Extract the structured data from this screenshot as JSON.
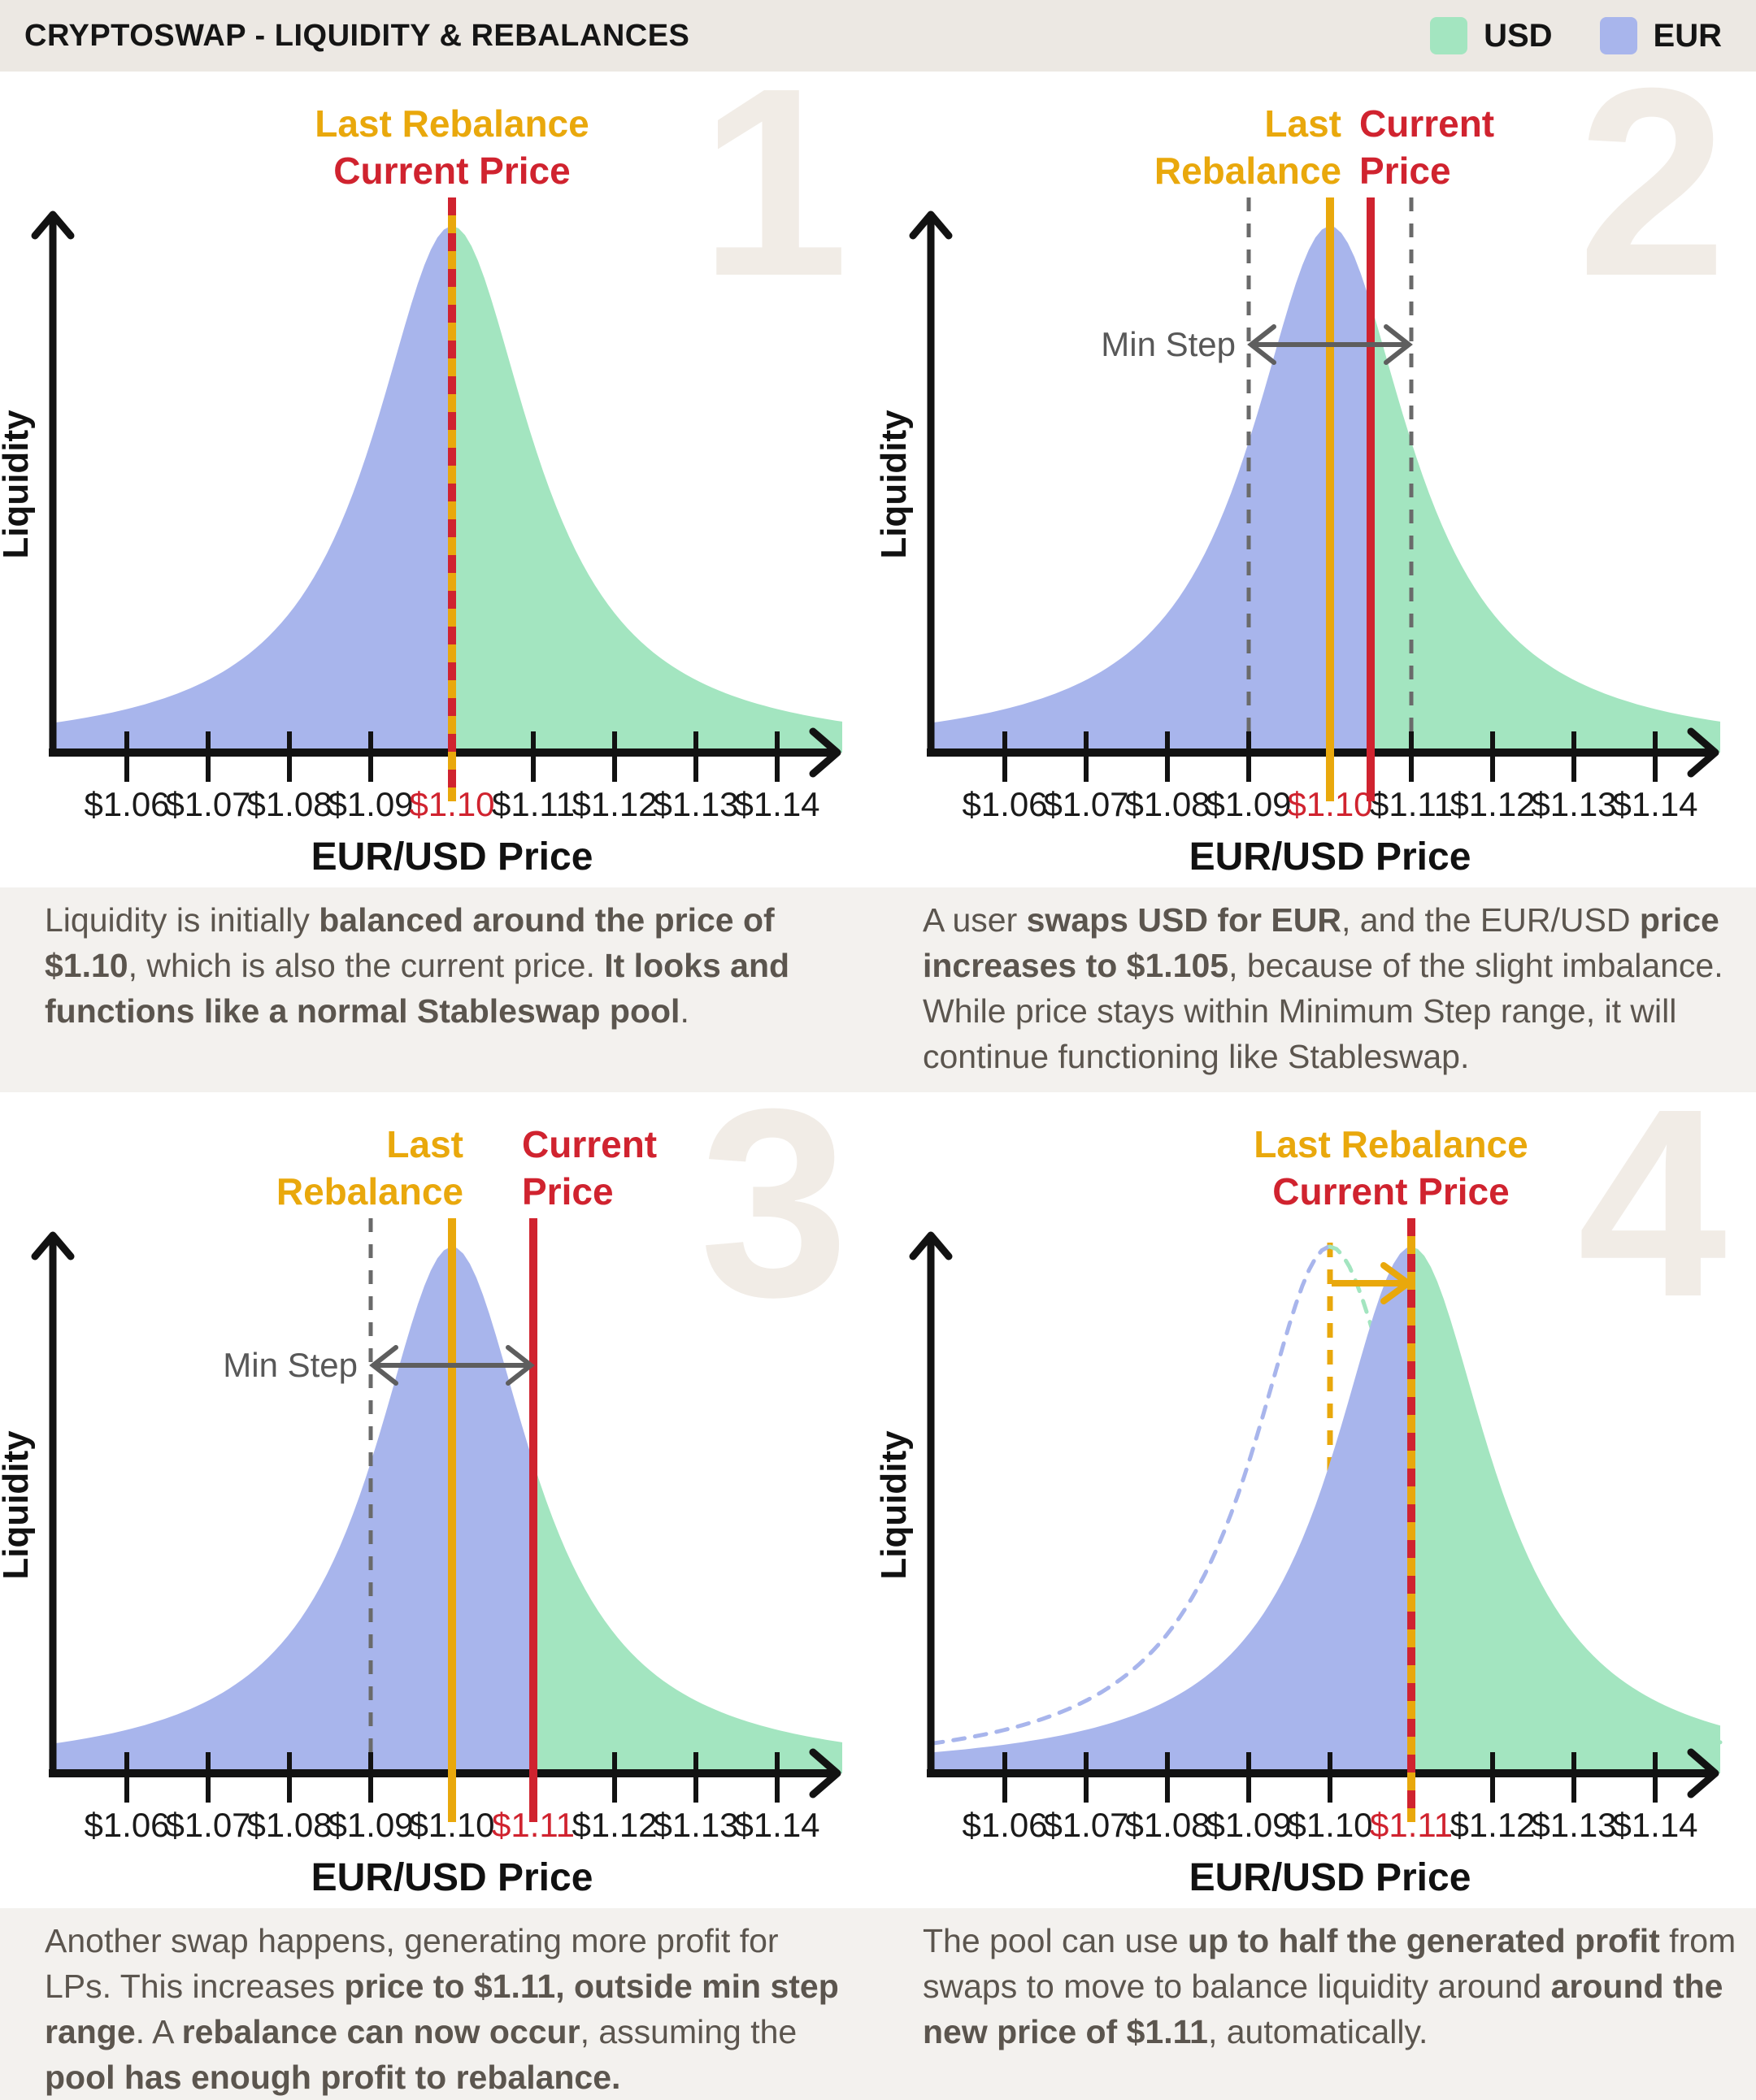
{
  "header": {
    "title": "CRYPTOSWAP - LIQUIDITY & REBALANCES",
    "legend": [
      {
        "label": "USD",
        "color": "#A3E5C0"
      },
      {
        "label": "EUR",
        "color": "#A8B5EC"
      }
    ]
  },
  "colors": {
    "usd_fill": "#A3E5C0",
    "eur_fill": "#A8B5EC",
    "gold": "#E9A80C",
    "red": "#D0232F",
    "axis": "#121212",
    "tick_text": "#1A1A1A",
    "dashed_gray": "#6A6A6A",
    "min_step_text": "#585858",
    "watermark": "#F1ECE6",
    "caption_text": "#5B554E",
    "header_bg": "#ECE8E3",
    "caption_bg": "#F3F1EE"
  },
  "axis": {
    "xlabel": "EUR/USD Price",
    "ylabel": "Liquidity",
    "x_min": 1.051,
    "x_max": 1.148,
    "tick_values": [
      1.06,
      1.07,
      1.08,
      1.09,
      1.1,
      1.11,
      1.12,
      1.13,
      1.14
    ],
    "tick_labels": [
      "$1.06",
      "$1.07",
      "$1.08",
      "$1.09",
      "$1.10",
      "$1.11",
      "$1.12",
      "$1.13",
      "$1.14"
    ]
  },
  "chart_data": [
    {
      "type": "area",
      "panel_number": "1",
      "curve_center": 1.1,
      "split_price": 1.1,
      "last_rebalance_price": 1.1,
      "current_price": 1.1,
      "marker": "overlaid",
      "gold_label_lines": [
        "Last Rebalance"
      ],
      "red_label_lines": [
        "Current Price"
      ],
      "labels_centered_at": 1.1,
      "min_step": null,
      "ghost": null,
      "highlight_tick": "$1.10"
    },
    {
      "type": "area",
      "panel_number": "2",
      "curve_center": 1.1,
      "split_price": 1.105,
      "last_rebalance_price": 1.1,
      "current_price": 1.105,
      "marker": "separate",
      "gold_label_lines": [
        "Last",
        "Rebalance"
      ],
      "red_label_lines": [
        "Current",
        "Price"
      ],
      "min_step": {
        "label": "Min Step",
        "range": [
          1.09,
          1.11
        ]
      },
      "ghost": null,
      "highlight_tick": "$1.10"
    },
    {
      "type": "area",
      "panel_number": "3",
      "curve_center": 1.1,
      "split_price": 1.11,
      "last_rebalance_price": 1.1,
      "current_price": 1.11,
      "marker": "separate",
      "gold_label_lines": [
        "Last",
        "Rebalance"
      ],
      "red_label_lines": [
        "Current",
        "Price"
      ],
      "min_step": {
        "label": "Min Step",
        "range": [
          1.09,
          1.11
        ]
      },
      "ghost": null,
      "highlight_tick": "$1.11"
    },
    {
      "type": "area",
      "panel_number": "4",
      "curve_center": 1.11,
      "split_price": 1.11,
      "last_rebalance_price": 1.11,
      "current_price": 1.11,
      "marker": "overlaid",
      "gold_label_lines": [
        "Last Rebalance"
      ],
      "red_label_lines": [
        "Current Price"
      ],
      "labels_centered_at": 1.1075,
      "min_step": null,
      "ghost": {
        "center": 1.1,
        "move_from": 1.1,
        "move_to": 1.11
      },
      "highlight_tick": "$1.11"
    }
  ],
  "captions": [
    {
      "segments": [
        {
          "text": "Liquidity is initially ",
          "bold": false
        },
        {
          "text": "balanced around the price of $1.10",
          "bold": true
        },
        {
          "text": ", which is also the current price.  ",
          "bold": false
        },
        {
          "text": "It looks and functions like a normal Stableswap pool",
          "bold": true
        },
        {
          "text": ".",
          "bold": false
        }
      ]
    },
    {
      "segments": [
        {
          "text": "A user ",
          "bold": false
        },
        {
          "text": "swaps USD for EUR",
          "bold": true
        },
        {
          "text": ", and the EUR/USD ",
          "bold": false
        },
        {
          "text": "price increases to $1.105",
          "bold": true
        },
        {
          "text": ", because of the slight imbalance. While price stays within Minimum Step range, it will continue functioning like Stableswap.",
          "bold": false
        }
      ]
    },
    {
      "segments": [
        {
          "text": "Another swap happens, generating more profit for LPs.  This increases ",
          "bold": false
        },
        {
          "text": "price to $1.11, outside min step range",
          "bold": true
        },
        {
          "text": ".  A ",
          "bold": false
        },
        {
          "text": "rebalance can now occur",
          "bold": true
        },
        {
          "text": ", assuming the ",
          "bold": false
        },
        {
          "text": "pool has enough profit to rebalance.",
          "bold": true
        }
      ]
    },
    {
      "segments": [
        {
          "text": "The pool can use ",
          "bold": false
        },
        {
          "text": "up to half the generated profit",
          "bold": true
        },
        {
          "text": " from swaps to move to balance liquidity around ",
          "bold": false
        },
        {
          "text": "around the new price of $1.11",
          "bold": true
        },
        {
          "text": ", automatically.",
          "bold": false
        }
      ]
    }
  ]
}
